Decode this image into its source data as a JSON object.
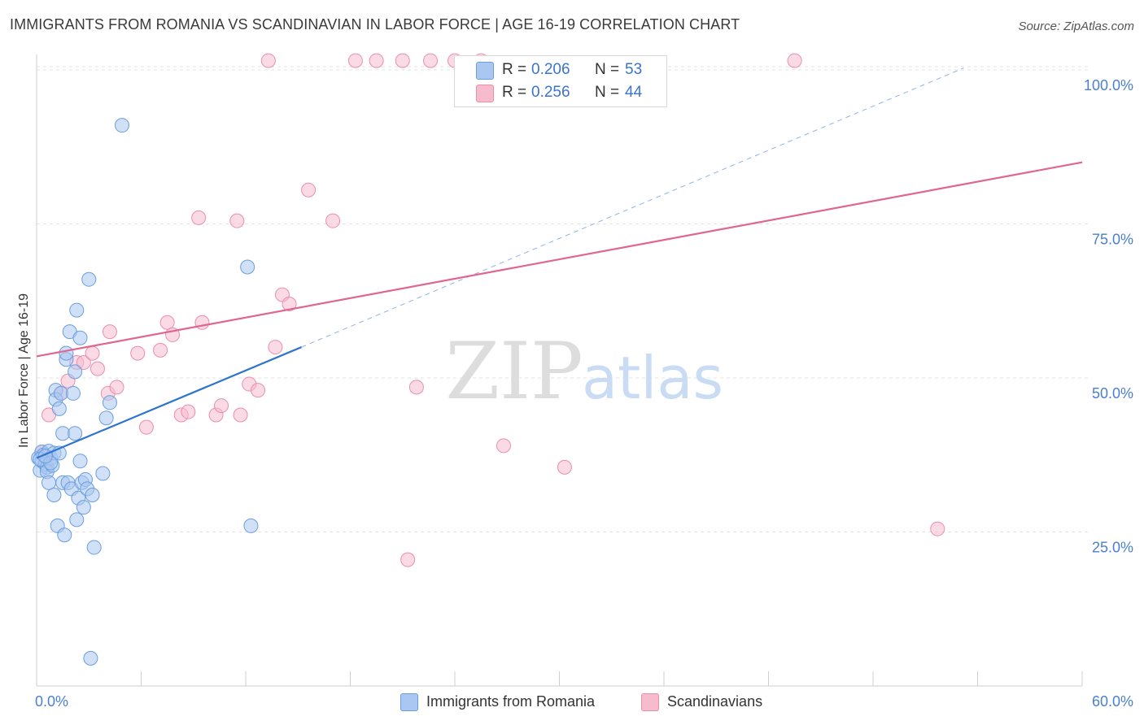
{
  "title": "IMMIGRANTS FROM ROMANIA VS SCANDINAVIAN IN LABOR FORCE | AGE 16-19 CORRELATION CHART",
  "source": "Source: ZipAtlas.com",
  "watermark": {
    "zip": "ZIP",
    "atlas": "atlas"
  },
  "legend": {
    "rows": [
      {
        "r_label": "R =",
        "r_value": "0.206",
        "n_label": "N =",
        "n_value": "53"
      },
      {
        "r_label": "R =",
        "r_value": "0.256",
        "n_label": "N =",
        "n_value": "44"
      }
    ]
  },
  "bottom_legend": [
    "Immigrants from Romania",
    "Scandinavians"
  ],
  "colors": {
    "blue_fill": "#a9c7f0",
    "blue_stroke": "#6a9ee0",
    "blue_line": "#2f74d0",
    "pink_fill": "#f6bccd",
    "pink_stroke": "#ea8fab",
    "pink_line": "#e06590",
    "axis_text": "#4a7fcf",
    "grid": "#e3e3e3"
  },
  "chart_data": {
    "type": "scatter",
    "title": "IMMIGRANTS FROM ROMANIA VS SCANDINAVIAN IN LABOR FORCE | AGE 16-19 CORRELATION CHART",
    "xlabel": "",
    "ylabel": "In Labor Force | Age 16-19",
    "xlim": [
      0,
      60
    ],
    "ylim": [
      0,
      102.5
    ],
    "x_tick_labels": [
      "0.0%",
      "60.0%"
    ],
    "y_ticks": [
      25,
      50,
      75,
      100
    ],
    "y_tick_labels": [
      "25.0%",
      "50.0%",
      "75.0%",
      "100.0%"
    ],
    "grid": true,
    "series": [
      {
        "name": "Immigrants from Romania",
        "R": 0.206,
        "N": 53,
        "points": [
          [
            0.1,
            37.0
          ],
          [
            0.2,
            35.0
          ],
          [
            0.3,
            36.5
          ],
          [
            0.3,
            38.0
          ],
          [
            0.4,
            37.5
          ],
          [
            0.5,
            36.0
          ],
          [
            0.6,
            35.5
          ],
          [
            0.6,
            34.8
          ],
          [
            0.7,
            38.1
          ],
          [
            0.7,
            33.0
          ],
          [
            0.8,
            37.0
          ],
          [
            0.9,
            35.8
          ],
          [
            1.0,
            37.8
          ],
          [
            1.0,
            31.0
          ],
          [
            1.1,
            48.0
          ],
          [
            1.1,
            46.5
          ],
          [
            1.2,
            26.0
          ],
          [
            1.3,
            37.8
          ],
          [
            1.3,
            45.0
          ],
          [
            1.4,
            47.5
          ],
          [
            1.5,
            41.0
          ],
          [
            1.5,
            33.0
          ],
          [
            1.6,
            24.5
          ],
          [
            1.7,
            53.0
          ],
          [
            1.7,
            54.0
          ],
          [
            1.8,
            33.0
          ],
          [
            1.9,
            57.5
          ],
          [
            2.0,
            32.0
          ],
          [
            2.1,
            47.5
          ],
          [
            2.2,
            41.0
          ],
          [
            2.2,
            51.0
          ],
          [
            2.3,
            27.0
          ],
          [
            2.3,
            61.0
          ],
          [
            2.4,
            30.5
          ],
          [
            2.5,
            56.5
          ],
          [
            2.5,
            36.5
          ],
          [
            2.6,
            33.0
          ],
          [
            2.7,
            29.0
          ],
          [
            2.8,
            33.5
          ],
          [
            2.9,
            32.0
          ],
          [
            3.0,
            66.0
          ],
          [
            3.1,
            4.5
          ],
          [
            3.2,
            31.0
          ],
          [
            3.3,
            22.5
          ],
          [
            3.8,
            34.5
          ],
          [
            4.0,
            43.5
          ],
          [
            4.2,
            46.0
          ],
          [
            4.9,
            91.0
          ],
          [
            12.1,
            68.0
          ],
          [
            12.3,
            26.0
          ],
          [
            0.2,
            36.8
          ],
          [
            0.8,
            36.2
          ],
          [
            0.5,
            37.3
          ]
        ],
        "trend": {
          "x": [
            0,
            15.2
          ],
          "y": [
            37.0,
            55.0
          ],
          "dashed_extension": {
            "x": [
              15.2,
              53.2
            ],
            "y": [
              55.0,
              100.3
            ]
          }
        }
      },
      {
        "name": "Scandinavians",
        "R": 0.256,
        "N": 44,
        "points": [
          [
            0.3,
            38.0
          ],
          [
            0.7,
            44.0
          ],
          [
            1.4,
            47.5
          ],
          [
            1.8,
            49.5
          ],
          [
            2.3,
            52.5
          ],
          [
            2.7,
            52.5
          ],
          [
            3.2,
            54.0
          ],
          [
            3.5,
            51.5
          ],
          [
            4.1,
            47.5
          ],
          [
            4.2,
            57.5
          ],
          [
            4.6,
            48.5
          ],
          [
            5.8,
            54.0
          ],
          [
            6.3,
            42.0
          ],
          [
            7.1,
            54.5
          ],
          [
            7.5,
            59.0
          ],
          [
            7.8,
            57.0
          ],
          [
            8.3,
            44.0
          ],
          [
            8.7,
            44.5
          ],
          [
            9.3,
            76.0
          ],
          [
            9.5,
            59.0
          ],
          [
            10.3,
            44.0
          ],
          [
            10.6,
            45.5
          ],
          [
            11.5,
            75.5
          ],
          [
            11.7,
            44.0
          ],
          [
            12.2,
            49.0
          ],
          [
            12.7,
            48.0
          ],
          [
            13.3,
            101.5
          ],
          [
            13.7,
            55.0
          ],
          [
            14.1,
            63.5
          ],
          [
            14.5,
            62.0
          ],
          [
            15.6,
            80.5
          ],
          [
            17.0,
            75.5
          ],
          [
            18.3,
            101.5
          ],
          [
            19.5,
            101.5
          ],
          [
            21.0,
            101.5
          ],
          [
            21.3,
            20.5
          ],
          [
            21.8,
            48.5
          ],
          [
            22.6,
            101.5
          ],
          [
            24.0,
            101.5
          ],
          [
            25.5,
            101.5
          ],
          [
            26.8,
            39.0
          ],
          [
            30.3,
            35.5
          ],
          [
            43.5,
            101.5
          ],
          [
            51.7,
            25.5
          ]
        ],
        "trend": {
          "x": [
            0,
            60
          ],
          "y": [
            53.5,
            85.0
          ]
        }
      }
    ]
  }
}
